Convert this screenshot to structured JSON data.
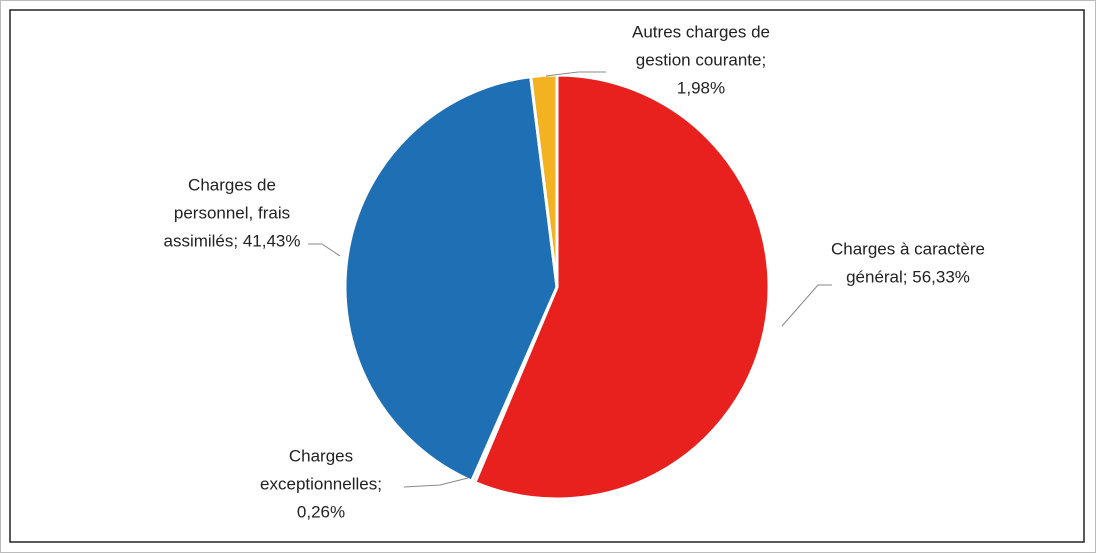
{
  "chart_data": {
    "type": "pie",
    "labels": [
      [
        "Charges à caractère",
        "général; 56,33%"
      ],
      [
        "Charges",
        "exceptionnelles;",
        "0,26%"
      ],
      [
        "Charges de",
        "personnel, frais",
        "assimilés; 41,43%"
      ],
      [
        "Autres charges de",
        "gestion courante;",
        "1,98%"
      ]
    ],
    "values": [
      56.33,
      0.26,
      41.43,
      1.98
    ],
    "colors": [
      "#e8211f",
      "#a5a5a5",
      "#1f6fb4",
      "#f3b221"
    ]
  }
}
